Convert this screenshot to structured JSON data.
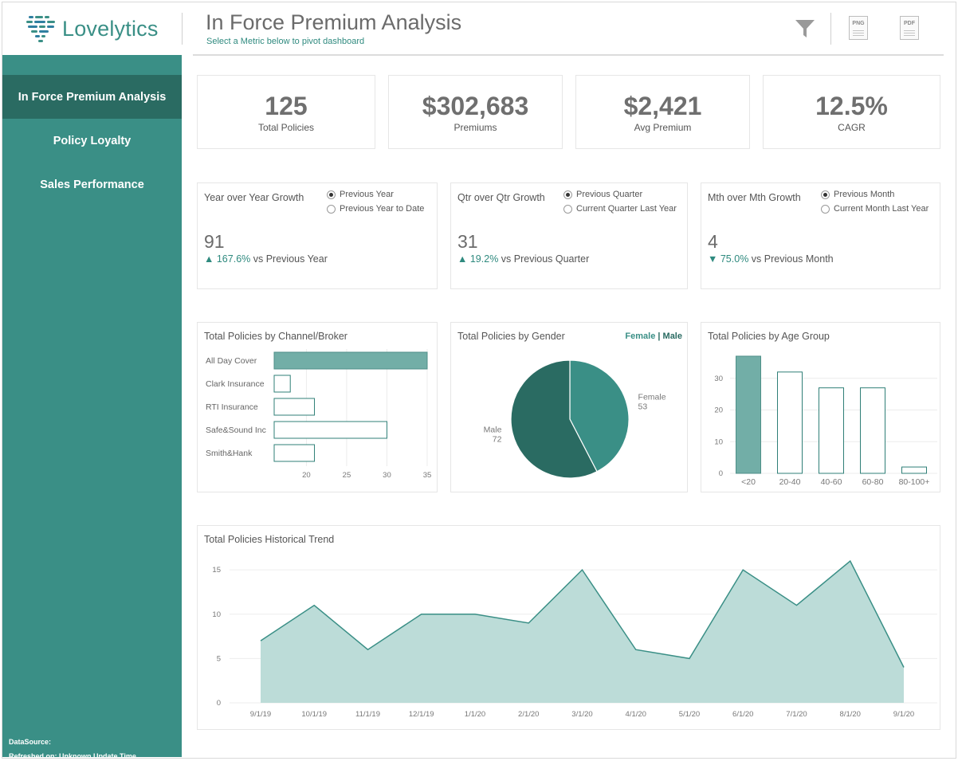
{
  "header": {
    "logo_text_a": "Lovelytics",
    "title": "In Force Premium Analysis",
    "subtitle": "Select a Metric below to pivot dashboard",
    "tools": [
      {
        "label": "PNG",
        "icon": "png-export-icon"
      },
      {
        "label": "PDF",
        "icon": "pdf-export-icon"
      }
    ]
  },
  "sidebar": {
    "items": [
      {
        "label": "In Force Premium Analysis",
        "active": true
      },
      {
        "label": "Policy Loyalty",
        "active": false
      },
      {
        "label": "Sales Performance",
        "active": false
      }
    ],
    "datasource": "DataSource:",
    "refreshed": "Refreshed on: Unknown Update Time"
  },
  "kpis": [
    {
      "value": "125",
      "label": "Total Policies"
    },
    {
      "value": "$302,683",
      "label": "Premiums"
    },
    {
      "value": "$2,421",
      "label": "Avg Premium"
    },
    {
      "value": "12.5%",
      "label": "CAGR"
    }
  ],
  "growth": [
    {
      "title": "Year over Year Growth",
      "options": [
        "Previous Year",
        "Previous Year to Date"
      ],
      "selected": 0,
      "value": "91",
      "arrow": "▲",
      "pct": "167.6%",
      "vs": "vs Previous Year"
    },
    {
      "title": "Qtr over Qtr Growth",
      "options": [
        "Previous Quarter",
        "Current Quarter Last Year"
      ],
      "selected": 0,
      "value": "31",
      "arrow": "▲",
      "pct": "19.2%",
      "vs": "vs Previous Quarter"
    },
    {
      "title": "Mth over Mth Growth",
      "options": [
        "Previous Month",
        "Current Month Last Year"
      ],
      "selected": 0,
      "value": "4",
      "arrow": "▼",
      "pct": "75.0%",
      "vs": "vs Previous Month"
    }
  ],
  "chart_data": [
    {
      "type": "bar",
      "orientation": "horizontal",
      "title": "Total Policies by Channel/Broker",
      "categories": [
        "All Day Cover",
        "Clark Insurance",
        "RTI Insurance",
        "Safe&Sound Inc",
        "Smith&Hank"
      ],
      "values": [
        35,
        18,
        21,
        30,
        21
      ],
      "highlight": 0,
      "xlim": [
        16,
        35
      ],
      "xticks": [
        20,
        25,
        30,
        35
      ],
      "grid": true
    },
    {
      "type": "pie",
      "title": "Total Policies by Gender",
      "legend": {
        "female": "Female",
        "sep": " | ",
        "male": "Male"
      },
      "slices": [
        {
          "label": "Female",
          "value": 53,
          "color": "#3a8f86"
        },
        {
          "label": "Male",
          "value": 72,
          "color": "#2a6b62"
        }
      ]
    },
    {
      "type": "bar",
      "title": "Total Policies by Age Group",
      "categories": [
        "<20",
        "20-40",
        "40-60",
        "60-80",
        "80-100+"
      ],
      "values": [
        37,
        32,
        27,
        27,
        2
      ],
      "highlight": 0,
      "ylim": [
        0,
        38
      ],
      "yticks": [
        0,
        10,
        20,
        30
      ],
      "grid": true
    },
    {
      "type": "area",
      "title": "Total Policies Historical Trend",
      "x": [
        "9/1/19",
        "10/1/19",
        "11/1/19",
        "12/1/19",
        "1/1/20",
        "2/1/20",
        "3/1/20",
        "4/1/20",
        "5/1/20",
        "6/1/20",
        "7/1/20",
        "8/1/20",
        "9/1/20"
      ],
      "values": [
        7,
        11,
        6,
        10,
        10,
        9,
        15,
        6,
        5,
        15,
        11,
        16,
        4
      ],
      "ylim": [
        0,
        16
      ],
      "yticks": [
        0,
        5,
        10,
        15
      ],
      "grid": true
    }
  ],
  "colors": {
    "accent": "#3a8f86",
    "accent_dark": "#2a6b62",
    "highlight_bar": "#72aea7",
    "area_fill": "#bcdcd8"
  }
}
